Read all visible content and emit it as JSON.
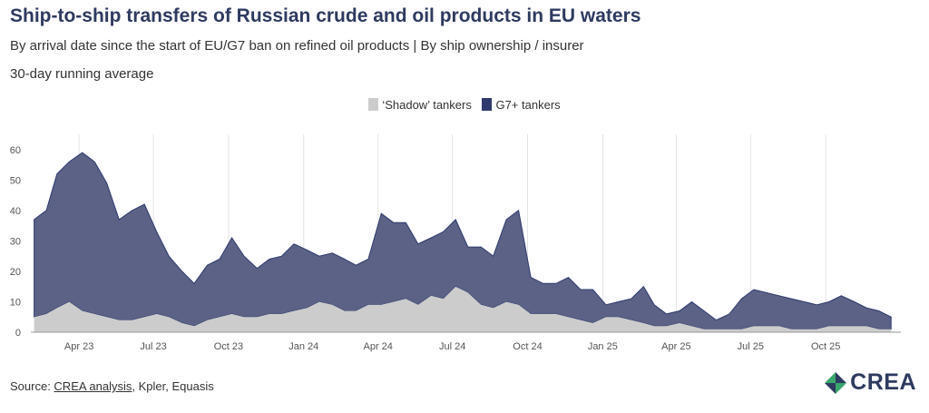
{
  "header": {
    "title": "Ship-to-ship transfers of Russian crude and oil products in EU waters",
    "subtitle": "By arrival date since the start of EU/G7 ban on refined oil products | By ship ownership / insurer",
    "note": "30-day running average"
  },
  "legend": [
    {
      "label": "‘Shadow’ tankers",
      "color": "#cccccc"
    },
    {
      "label": "G7+ tankers",
      "color": "#2e3a6e"
    }
  ],
  "source": {
    "prefix": "Source: ",
    "link_text": "CREA analysis",
    "suffix": ", Kpler, Equasis"
  },
  "logo": {
    "text": "CREA"
  },
  "colors": {
    "shadow": "#cccccc",
    "g7": "#5b6285",
    "g7_line": "#2e3a6e",
    "title": "#2e3a5f"
  },
  "chart_data": {
    "type": "area",
    "stacked": true,
    "x_unit": "month",
    "x_start": "2023-02",
    "x_end": "2026-01",
    "ylim": [
      0,
      65
    ],
    "y_ticks": [
      0,
      10,
      20,
      30,
      40,
      50,
      60
    ],
    "x_ticks": [
      "Apr 23",
      "Jul 23",
      "Oct 23",
      "Jan 24",
      "Apr 24",
      "Jul 24",
      "Oct 24",
      "Jan 25",
      "Apr 25",
      "Jul 25",
      "Oct 25"
    ],
    "grid": "vertical",
    "legend_position": "top-center",
    "series": [
      {
        "name": "‘Shadow’ tankers",
        "color": "#cccccc",
        "x": [
          "2023-02-05",
          "2023-02-20",
          "2023-03-05",
          "2023-03-20",
          "2023-04-05",
          "2023-04-20",
          "2023-05-05",
          "2023-05-20",
          "2023-06-05",
          "2023-06-20",
          "2023-07-05",
          "2023-07-20",
          "2023-08-05",
          "2023-08-20",
          "2023-09-05",
          "2023-09-20",
          "2023-10-05",
          "2023-10-20",
          "2023-11-05",
          "2023-11-20",
          "2023-12-05",
          "2023-12-20",
          "2024-01-05",
          "2024-01-20",
          "2024-02-05",
          "2024-02-20",
          "2024-03-05",
          "2024-03-20",
          "2024-04-05",
          "2024-04-20",
          "2024-05-05",
          "2024-05-20",
          "2024-06-05",
          "2024-06-20",
          "2024-07-05",
          "2024-07-20",
          "2024-08-05",
          "2024-08-20",
          "2024-09-05",
          "2024-09-20",
          "2024-10-05",
          "2024-10-20",
          "2024-11-05",
          "2024-11-20",
          "2024-12-05",
          "2024-12-20",
          "2025-01-05",
          "2025-01-20",
          "2025-02-05",
          "2025-02-20",
          "2025-03-05",
          "2025-03-20",
          "2025-04-05",
          "2025-04-20",
          "2025-05-05",
          "2025-05-20",
          "2025-06-05",
          "2025-06-20",
          "2025-07-05",
          "2025-07-20",
          "2025-08-05",
          "2025-08-20",
          "2025-09-05",
          "2025-09-20",
          "2025-10-05",
          "2025-10-20",
          "2025-11-05",
          "2025-11-20",
          "2025-12-05",
          "2025-12-20"
        ],
        "values": [
          5,
          6,
          8,
          10,
          7,
          6,
          5,
          4,
          4,
          5,
          6,
          5,
          3,
          2,
          4,
          5,
          6,
          5,
          5,
          6,
          6,
          7,
          8,
          10,
          9,
          7,
          7,
          9,
          9,
          10,
          11,
          9,
          12,
          11,
          15,
          13,
          9,
          8,
          10,
          9,
          6,
          6,
          6,
          5,
          4,
          3,
          5,
          5,
          4,
          3,
          2,
          2,
          3,
          2,
          1,
          1,
          1,
          1,
          2,
          2,
          2,
          1,
          1,
          1,
          2,
          2,
          2,
          2,
          1,
          1
        ]
      },
      {
        "name": "G7+ tankers",
        "color": "#5b6285",
        "x": [
          "2023-02-05",
          "2023-02-20",
          "2023-03-05",
          "2023-03-20",
          "2023-04-05",
          "2023-04-20",
          "2023-05-05",
          "2023-05-20",
          "2023-06-05",
          "2023-06-20",
          "2023-07-05",
          "2023-07-20",
          "2023-08-05",
          "2023-08-20",
          "2023-09-05",
          "2023-09-20",
          "2023-10-05",
          "2023-10-20",
          "2023-11-05",
          "2023-11-20",
          "2023-12-05",
          "2023-12-20",
          "2024-01-05",
          "2024-01-20",
          "2024-02-05",
          "2024-02-20",
          "2024-03-05",
          "2024-03-20",
          "2024-04-05",
          "2024-04-20",
          "2024-05-05",
          "2024-05-20",
          "2024-06-05",
          "2024-06-20",
          "2024-07-05",
          "2024-07-20",
          "2024-08-05",
          "2024-08-20",
          "2024-09-05",
          "2024-09-20",
          "2024-10-05",
          "2024-10-20",
          "2024-11-05",
          "2024-11-20",
          "2024-12-05",
          "2024-12-20",
          "2025-01-05",
          "2025-01-20",
          "2025-02-05",
          "2025-02-20",
          "2025-03-05",
          "2025-03-20",
          "2025-04-05",
          "2025-04-20",
          "2025-05-05",
          "2025-05-20",
          "2025-06-05",
          "2025-06-20",
          "2025-07-05",
          "2025-07-20",
          "2025-08-05",
          "2025-08-20",
          "2025-09-05",
          "2025-09-20",
          "2025-10-05",
          "2025-10-20",
          "2025-11-05",
          "2025-11-20",
          "2025-12-05",
          "2025-12-20"
        ],
        "values": [
          32,
          34,
          44,
          46,
          52,
          50,
          44,
          33,
          36,
          37,
          27,
          20,
          17,
          14,
          18,
          19,
          25,
          20,
          16,
          18,
          19,
          22,
          19,
          15,
          17,
          17,
          15,
          15,
          30,
          26,
          25,
          20,
          19,
          22,
          22,
          15,
          19,
          17,
          27,
          31,
          12,
          10,
          10,
          13,
          10,
          11,
          4,
          5,
          7,
          12,
          7,
          4,
          4,
          8,
          6,
          3,
          5,
          10,
          12,
          11,
          10,
          10,
          9,
          8,
          8,
          10,
          8,
          6,
          6,
          4
        ]
      }
    ]
  }
}
